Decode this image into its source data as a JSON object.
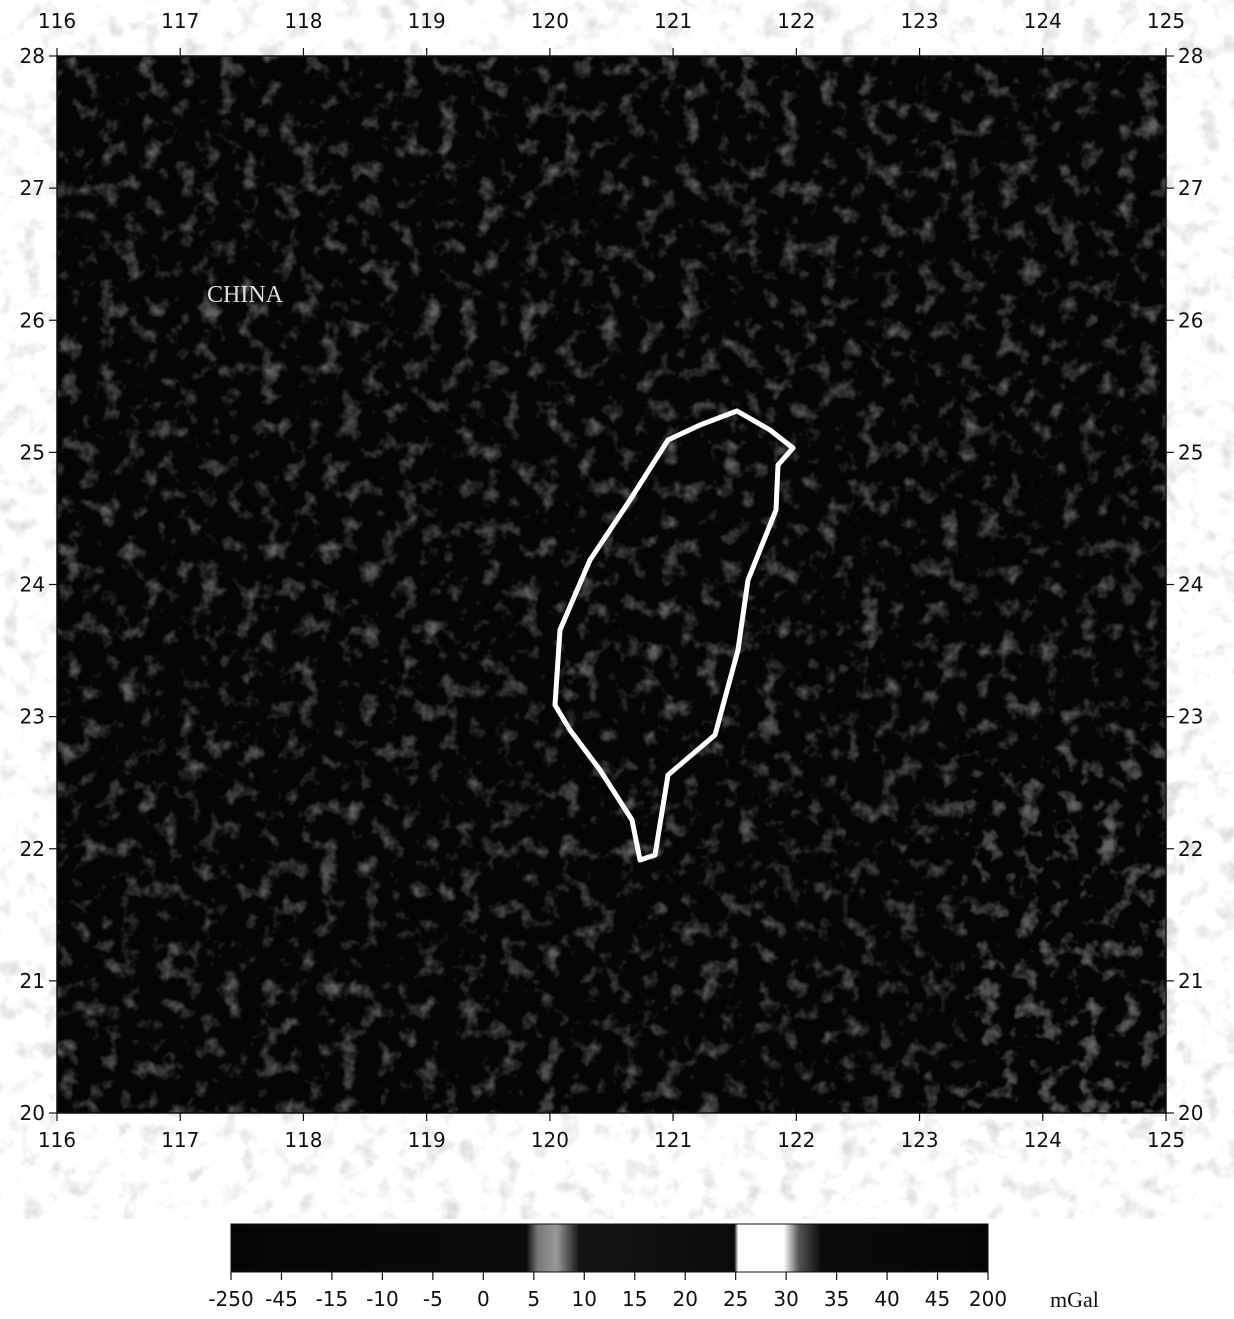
{
  "map": {
    "lon_ticks": [
      116,
      117,
      118,
      119,
      120,
      121,
      122,
      123,
      124,
      125
    ],
    "lat_ticks": [
      20,
      21,
      22,
      23,
      24,
      25,
      26,
      27,
      28
    ],
    "label": "CHINA"
  },
  "colorbar": {
    "ticks": [
      -250,
      -45,
      -15,
      -10,
      -5,
      0,
      5,
      10,
      15,
      20,
      25,
      30,
      35,
      40,
      45,
      200
    ],
    "unit": "mGal"
  }
}
